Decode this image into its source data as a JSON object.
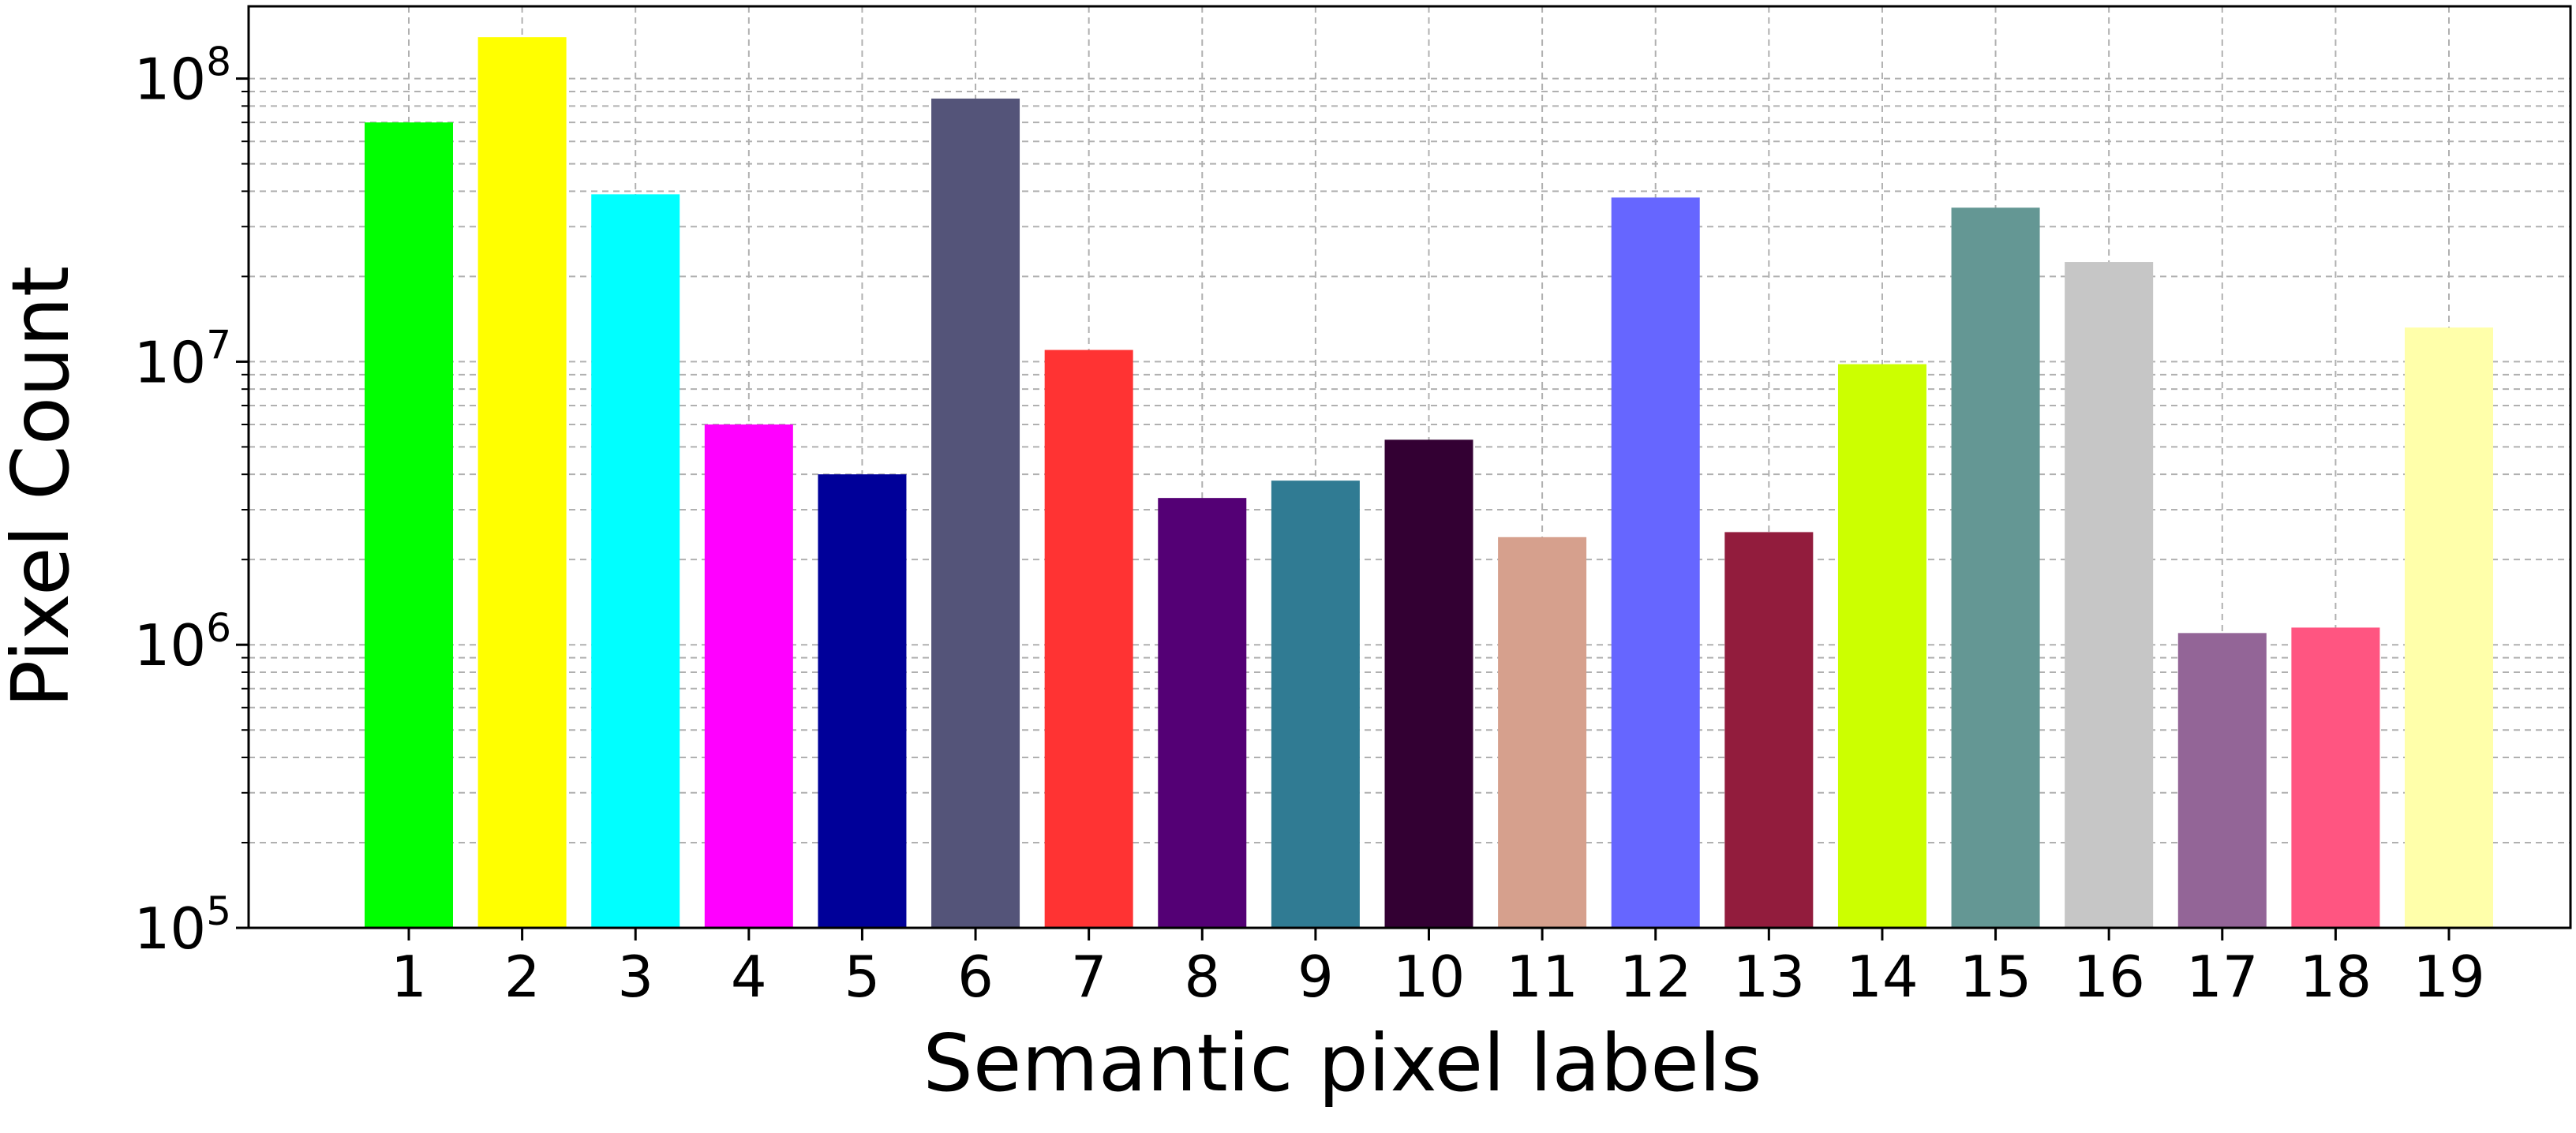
{
  "chart_data": {
    "type": "bar",
    "title": "",
    "xlabel": "Semantic pixel labels",
    "ylabel": "Pixel Count",
    "yscale": "log",
    "ylim": [
      100000,
      180000000
    ],
    "grid": true,
    "categories": [
      "1",
      "2",
      "3",
      "4",
      "5",
      "6",
      "7",
      "8",
      "9",
      "10",
      "11",
      "12",
      "13",
      "14",
      "15",
      "16",
      "17",
      "18",
      "19"
    ],
    "values": [
      70000000,
      140000000,
      39000000,
      6000000,
      4000000,
      85000000,
      11000000,
      3300000,
      3800000,
      5300000,
      2400000,
      38000000,
      2500000,
      9800000,
      35000000,
      22500000,
      1100000,
      1150000,
      13200000
    ],
    "colors": [
      "#00ff00",
      "#ffff00",
      "#00ffff",
      "#ff00ff",
      "#000099",
      "#545479",
      "#ff3333",
      "#540075",
      "#307b93",
      "#330033",
      "#d6a08d",
      "#6666ff",
      "#921c3d",
      "#ccff00",
      "#649794",
      "#c6c6c6",
      "#936597",
      "#ff5581",
      "#ffffaa"
    ],
    "y_ticks": [
      {
        "value": 100000,
        "base": "10",
        "exp": "5"
      },
      {
        "value": 1000000,
        "base": "10",
        "exp": "6"
      },
      {
        "value": 10000000,
        "base": "10",
        "exp": "7"
      },
      {
        "value": 100000000,
        "base": "10",
        "exp": "8"
      }
    ]
  }
}
